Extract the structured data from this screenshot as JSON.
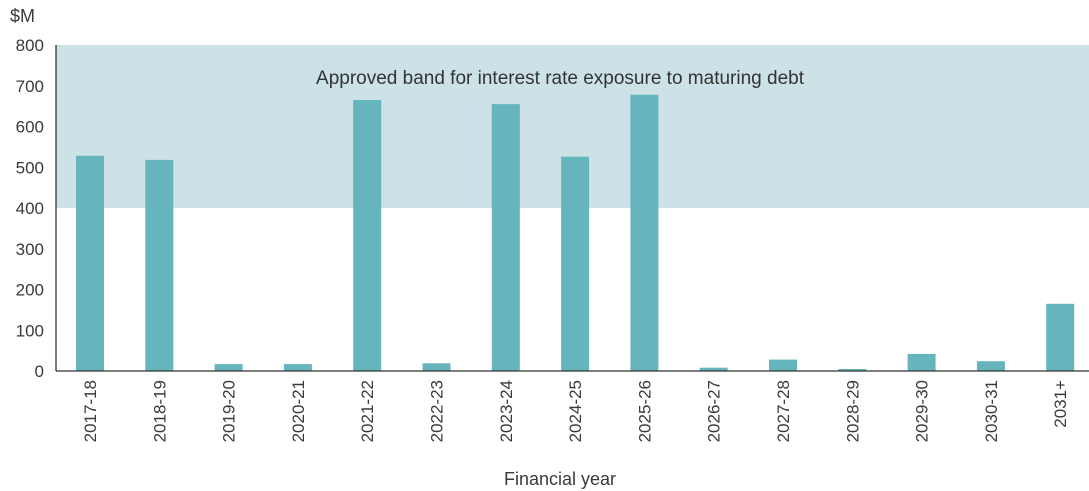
{
  "chart_data": {
    "type": "bar",
    "y_unit": "$M",
    "xlabel": "Financial year",
    "ylabel": "",
    "ylim": [
      0,
      800
    ],
    "yticks": [
      0,
      100,
      200,
      300,
      400,
      500,
      600,
      700,
      800
    ],
    "grid": false,
    "categories": [
      "2017-18",
      "2018-19",
      "2019-20",
      "2020-21",
      "2021-22",
      "2022-23",
      "2023-24",
      "2024-25",
      "2025-26",
      "2026-27",
      "2027-28",
      "2028-29",
      "2029-30",
      "2030-31",
      "2031+"
    ],
    "values": [
      528,
      518,
      17,
      17,
      665,
      19,
      655,
      526,
      678,
      8,
      28,
      5,
      42,
      24,
      165
    ],
    "band": {
      "label": "Approved band for interest rate exposure to maturing debt",
      "from": 400,
      "to": 800
    },
    "colors": {
      "bar": "#66b5bd",
      "band": "#cde2e6",
      "axis": "#333333"
    }
  }
}
